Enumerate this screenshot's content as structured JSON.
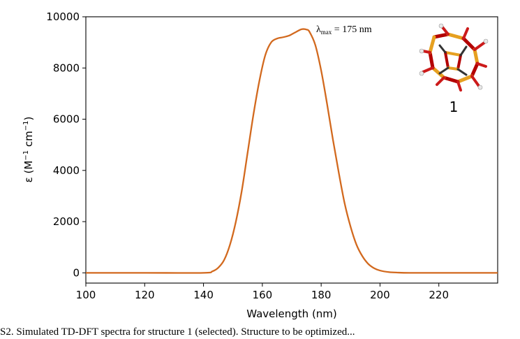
{
  "chart_data": {
    "type": "line",
    "title": "",
    "xlabel": "Wavelength (nm)",
    "ylabel_prefix": "ε (M",
    "ylabel_mid": " cm",
    "ylabel_suffix": ")",
    "ylabel_sup": "−1",
    "xlim": [
      100,
      240
    ],
    "ylim": [
      -400,
      10000
    ],
    "xticks": [
      100,
      120,
      140,
      160,
      180,
      200,
      220
    ],
    "yticks": [
      0,
      2000,
      4000,
      6000,
      8000,
      10000
    ],
    "grid": false,
    "series": [
      {
        "color": "#d2691e",
        "x": [
          100,
          120,
          140,
          143,
          145,
          147,
          149,
          151,
          153,
          155,
          157,
          159,
          161,
          163,
          165,
          167,
          169,
          171,
          173,
          174,
          175,
          176,
          178,
          180,
          182,
          184,
          186,
          188,
          190,
          192,
          194,
          196,
          198,
          200,
          203,
          206,
          210,
          220,
          240
        ],
        "y": [
          0,
          0,
          0,
          60,
          200,
          500,
          1100,
          2000,
          3200,
          4700,
          6200,
          7500,
          8500,
          9000,
          9150,
          9200,
          9260,
          9380,
          9500,
          9520,
          9500,
          9420,
          8900,
          7900,
          6600,
          5200,
          3900,
          2700,
          1800,
          1100,
          650,
          350,
          180,
          90,
          30,
          10,
          0,
          0,
          0
        ]
      }
    ],
    "annotation": {
      "lambda": "λ",
      "sub": "max",
      "rest": " = 175 nm",
      "x": 175,
      "y": 9500
    },
    "molecule_label": "1"
  },
  "caption": "S2. Simulated TD-DFT spectra for structure 1 (selected). Structure to be optimized..."
}
